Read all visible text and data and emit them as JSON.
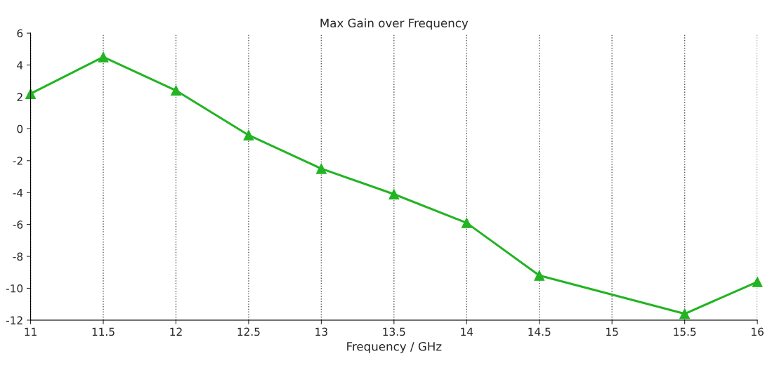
{
  "chart_data": {
    "type": "line",
    "title": "Max Gain over Frequency",
    "xlabel": "Frequency / GHz",
    "x": [
      11,
      11.5,
      12,
      12.5,
      13,
      13.5,
      14,
      14.5,
      15.5,
      16
    ],
    "series": [
      {
        "color": "#22b422",
        "values": [
          2.2,
          4.5,
          2.4,
          -0.4,
          -2.5,
          -4.1,
          -5.9,
          -9.2,
          -11.6,
          -9.6
        ]
      }
    ],
    "xlim": [
      11,
      16
    ],
    "xticks": [
      11,
      11.5,
      12,
      12.5,
      13,
      13.5,
      14,
      14.5,
      15,
      15.5,
      16
    ],
    "ylim": [
      -12,
      6
    ],
    "yticks": [
      -12,
      -10,
      -8,
      -6,
      -4,
      -2,
      0,
      2,
      4,
      6
    ],
    "grid": "x",
    "marker": "triangle",
    "line_style": "solid"
  }
}
